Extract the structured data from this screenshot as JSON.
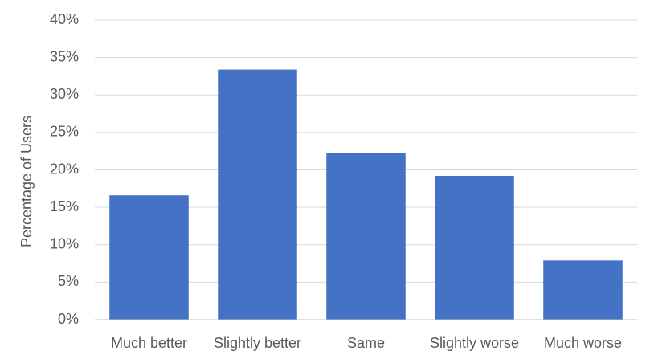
{
  "chart_data": {
    "type": "bar",
    "y_label": "Percentage of Users",
    "categories": [
      "Much better",
      "Slightly better",
      "Same",
      "Slightly worse",
      "Much worse"
    ],
    "values": [
      16.6,
      33.4,
      22.2,
      19.2,
      7.9
    ],
    "color": "#4472c4",
    "ylim": [
      0,
      40
    ],
    "yticks": [
      {
        "value": 0,
        "label": "0%"
      },
      {
        "value": 5,
        "label": "5%"
      },
      {
        "value": 10,
        "label": "10%"
      },
      {
        "value": 15,
        "label": "15%"
      },
      {
        "value": 20,
        "label": "20%"
      },
      {
        "value": 25,
        "label": "25%"
      },
      {
        "value": 30,
        "label": "30%"
      },
      {
        "value": 35,
        "label": "35%"
      },
      {
        "value": 40,
        "label": "40%"
      }
    ],
    "grid": true
  }
}
